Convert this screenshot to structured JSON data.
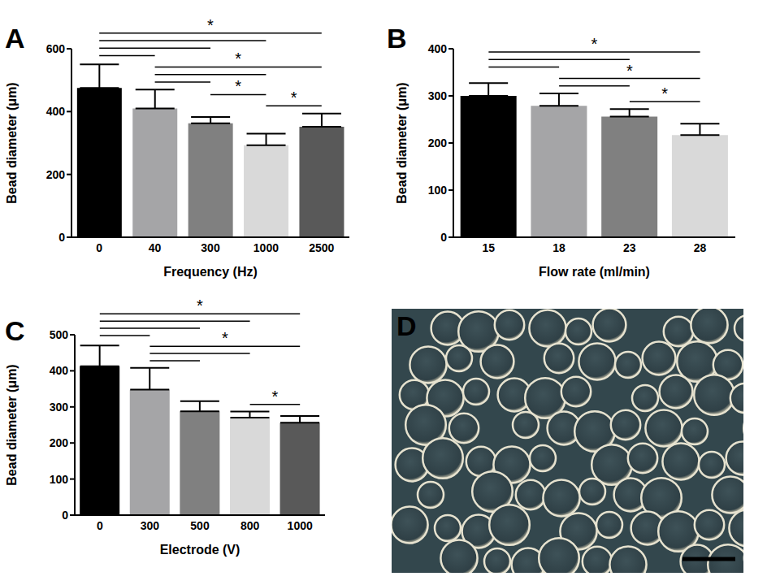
{
  "chart_data": [
    {
      "panel": "A",
      "type": "bar",
      "categories": [
        "0",
        "40",
        "300",
        "1000",
        "2500"
      ],
      "values": [
        475,
        410,
        363,
        293,
        352
      ],
      "errors": [
        75,
        60,
        20,
        37,
        42
      ],
      "colors": [
        "#000000",
        "#a5a5a7",
        "#808080",
        "#d9d9d9",
        "#595959"
      ],
      "xlabel": "Frequency (Hz)",
      "ylabel": "Bead diameter (μm)",
      "ylim": [
        0,
        600
      ],
      "yticks": [
        0,
        200,
        400,
        600
      ],
      "comparisons": [
        {
          "pair": [
            "0",
            "2500"
          ],
          "label": "*"
        },
        {
          "pair": [
            "0",
            "1000"
          ]
        },
        {
          "pair": [
            "0",
            "300"
          ]
        },
        {
          "pair": [
            "0",
            "40"
          ]
        },
        {
          "pair": [
            "40",
            "2500"
          ],
          "label": "*"
        },
        {
          "pair": [
            "40",
            "1000"
          ]
        },
        {
          "pair": [
            "40",
            "300"
          ]
        },
        {
          "pair": [
            "300",
            "1000"
          ],
          "label": "*"
        },
        {
          "pair": [
            "1000",
            "2500"
          ],
          "label": "*"
        }
      ]
    },
    {
      "panel": "B",
      "type": "bar",
      "categories": [
        "15",
        "18",
        "23",
        "28"
      ],
      "values": [
        300,
        279,
        256,
        217
      ],
      "errors": [
        27,
        26,
        16,
        24
      ],
      "colors": [
        "#000000",
        "#a5a5a7",
        "#808080",
        "#d9d9d9"
      ],
      "xlabel": "Flow rate (ml/min)",
      "ylabel": "Bead diameter (μm)",
      "ylim": [
        0,
        400
      ],
      "yticks": [
        0,
        100,
        200,
        300,
        400
      ],
      "comparisons": [
        {
          "pair": [
            "15",
            "28"
          ],
          "label": "*"
        },
        {
          "pair": [
            "15",
            "23"
          ]
        },
        {
          "pair": [
            "15",
            "18"
          ]
        },
        {
          "pair": [
            "18",
            "28"
          ],
          "label": "*"
        },
        {
          "pair": [
            "18",
            "23"
          ]
        },
        {
          "pair": [
            "23",
            "28"
          ],
          "label": "*"
        }
      ]
    },
    {
      "panel": "C",
      "type": "bar",
      "categories": [
        "0",
        "300",
        "500",
        "800",
        "1000"
      ],
      "values": [
        413,
        348,
        288,
        270,
        256
      ],
      "errors": [
        57,
        60,
        28,
        17,
        19
      ],
      "colors": [
        "#000000",
        "#a5a5a7",
        "#808080",
        "#d9d9d9",
        "#595959"
      ],
      "xlabel": "Electrode (V)",
      "ylabel": "Bead diameter (μm)",
      "ylim": [
        0,
        500
      ],
      "yticks": [
        0,
        100,
        200,
        300,
        400,
        500
      ],
      "comparisons": [
        {
          "pair": [
            "0",
            "1000"
          ],
          "label": "*"
        },
        {
          "pair": [
            "0",
            "800"
          ]
        },
        {
          "pair": [
            "0",
            "500"
          ]
        },
        {
          "pair": [
            "0",
            "300"
          ]
        },
        {
          "pair": [
            "300",
            "1000"
          ],
          "label": "*"
        },
        {
          "pair": [
            "300",
            "800"
          ]
        },
        {
          "pair": [
            "300",
            "500"
          ]
        },
        {
          "pair": [
            "800",
            "1000"
          ],
          "label": "*"
        }
      ]
    },
    {
      "panel": "D",
      "type": "image"
    }
  ]
}
